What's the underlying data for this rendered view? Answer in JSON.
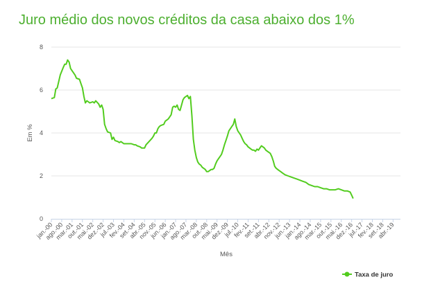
{
  "colors": {
    "title": "#4caf2f",
    "series": "#52cc1e",
    "grid": "#e6e6e6",
    "axis_line": "#c7d3e6",
    "text": "#555555"
  },
  "chart_data": {
    "type": "line",
    "title": "Juro médio dos novos créditos da casa abaixo dos 1%",
    "xlabel": "Mês",
    "ylabel": "Em %",
    "ylim": [
      0,
      8
    ],
    "yticks": [
      0,
      2,
      4,
      6,
      8
    ],
    "grid": "horizontal",
    "legend_position": "bottom-right",
    "x_start": "jan-00",
    "x_end": "set-19",
    "xticks": [
      {
        "label": "jan.-00",
        "index": 0
      },
      {
        "label": "ago.-00",
        "index": 7
      },
      {
        "label": "mar.-01",
        "index": 14
      },
      {
        "label": "out.-01",
        "index": 21
      },
      {
        "label": "mai.-02",
        "index": 28
      },
      {
        "label": "dez.-02",
        "index": 35
      },
      {
        "label": "jul.-03",
        "index": 42
      },
      {
        "label": "fev.-04",
        "index": 49
      },
      {
        "label": "set.-04",
        "index": 56
      },
      {
        "label": "abr.-05",
        "index": 63
      },
      {
        "label": "nov.-05",
        "index": 70
      },
      {
        "label": "jun.-06",
        "index": 77
      },
      {
        "label": "jan.-07",
        "index": 84
      },
      {
        "label": "ago.-07",
        "index": 91
      },
      {
        "label": "mar.-08",
        "index": 98
      },
      {
        "label": "out.-08",
        "index": 105
      },
      {
        "label": "mai.-09",
        "index": 112
      },
      {
        "label": "dez.-09",
        "index": 119
      },
      {
        "label": "jul.-10",
        "index": 126
      },
      {
        "label": "fev.-11",
        "index": 133
      },
      {
        "label": "set.-11",
        "index": 140
      },
      {
        "label": "abr.-12",
        "index": 147
      },
      {
        "label": "nov.-12",
        "index": 154
      },
      {
        "label": "jun.-13",
        "index": 161
      },
      {
        "label": "jan.-14",
        "index": 168
      },
      {
        "label": "ago.-14",
        "index": 175
      },
      {
        "label": "mar.-15",
        "index": 182
      },
      {
        "label": "out.-15",
        "index": 189
      },
      {
        "label": "mai.-16",
        "index": 196
      },
      {
        "label": "dez.-16",
        "index": 203
      },
      {
        "label": "jul.-17",
        "index": 210
      },
      {
        "label": "fev.-18",
        "index": 217
      },
      {
        "label": "set.-18",
        "index": 224
      },
      {
        "label": "abr.-19",
        "index": 231
      }
    ],
    "series": [
      {
        "name": "Taxa de juro",
        "points": [
          [
            0,
            5.6
          ],
          [
            2,
            5.65
          ],
          [
            3,
            6.05
          ],
          [
            4,
            6.1
          ],
          [
            6,
            6.7
          ],
          [
            8,
            7.05
          ],
          [
            9,
            7.2
          ],
          [
            10,
            7.2
          ],
          [
            11,
            7.4
          ],
          [
            12,
            7.3
          ],
          [
            13,
            7.0
          ],
          [
            14,
            6.9
          ],
          [
            16,
            6.7
          ],
          [
            17,
            6.55
          ],
          [
            19,
            6.5
          ],
          [
            20,
            6.3
          ],
          [
            21,
            6.1
          ],
          [
            22,
            5.7
          ],
          [
            23,
            5.4
          ],
          [
            24,
            5.5
          ],
          [
            26,
            5.4
          ],
          [
            28,
            5.45
          ],
          [
            29,
            5.4
          ],
          [
            30,
            5.5
          ],
          [
            32,
            5.35
          ],
          [
            33,
            5.2
          ],
          [
            34,
            5.3
          ],
          [
            35,
            5.1
          ],
          [
            36,
            4.4
          ],
          [
            37,
            4.2
          ],
          [
            38,
            4.05
          ],
          [
            40,
            4.0
          ],
          [
            41,
            3.7
          ],
          [
            42,
            3.8
          ],
          [
            43,
            3.65
          ],
          [
            45,
            3.6
          ],
          [
            46,
            3.55
          ],
          [
            47,
            3.6
          ],
          [
            48,
            3.55
          ],
          [
            49,
            3.5
          ],
          [
            50,
            3.5
          ],
          [
            52,
            3.5
          ],
          [
            54,
            3.5
          ],
          [
            56,
            3.45
          ],
          [
            57,
            3.45
          ],
          [
            58,
            3.4
          ],
          [
            60,
            3.35
          ],
          [
            61,
            3.3
          ],
          [
            62,
            3.3
          ],
          [
            63,
            3.3
          ],
          [
            64,
            3.45
          ],
          [
            66,
            3.6
          ],
          [
            68,
            3.75
          ],
          [
            69,
            3.85
          ],
          [
            70,
            4.0
          ],
          [
            71,
            4.0
          ],
          [
            72,
            4.2
          ],
          [
            73,
            4.3
          ],
          [
            74,
            4.35
          ],
          [
            76,
            4.4
          ],
          [
            77,
            4.55
          ],
          [
            78,
            4.6
          ],
          [
            79,
            4.65
          ],
          [
            80,
            4.75
          ],
          [
            81,
            4.85
          ],
          [
            82,
            5.2
          ],
          [
            83,
            5.25
          ],
          [
            84,
            5.2
          ],
          [
            85,
            5.3
          ],
          [
            86,
            5.1
          ],
          [
            87,
            5.05
          ],
          [
            88,
            5.3
          ],
          [
            89,
            5.55
          ],
          [
            90,
            5.65
          ],
          [
            91,
            5.7
          ],
          [
            92,
            5.75
          ],
          [
            93,
            5.6
          ],
          [
            94,
            5.7
          ],
          [
            95,
            4.8
          ],
          [
            96,
            3.7
          ],
          [
            97,
            3.2
          ],
          [
            98,
            2.85
          ],
          [
            99,
            2.65
          ],
          [
            100,
            2.55
          ],
          [
            101,
            2.5
          ],
          [
            102,
            2.4
          ],
          [
            103,
            2.35
          ],
          [
            104,
            2.3
          ],
          [
            105,
            2.2
          ],
          [
            106,
            2.2
          ],
          [
            107,
            2.25
          ],
          [
            108,
            2.3
          ],
          [
            109,
            2.3
          ],
          [
            110,
            2.35
          ],
          [
            111,
            2.55
          ],
          [
            112,
            2.7
          ],
          [
            113,
            2.8
          ],
          [
            114,
            2.9
          ],
          [
            115,
            3.0
          ],
          [
            116,
            3.2
          ],
          [
            117,
            3.45
          ],
          [
            118,
            3.65
          ],
          [
            119,
            3.85
          ],
          [
            120,
            4.1
          ],
          [
            121,
            4.2
          ],
          [
            122,
            4.3
          ],
          [
            123,
            4.4
          ],
          [
            124,
            4.65
          ],
          [
            125,
            4.3
          ],
          [
            126,
            4.1
          ],
          [
            127,
            4.0
          ],
          [
            128,
            3.9
          ],
          [
            129,
            3.75
          ],
          [
            130,
            3.6
          ],
          [
            131,
            3.5
          ],
          [
            132,
            3.45
          ],
          [
            133,
            3.35
          ],
          [
            134,
            3.3
          ],
          [
            135,
            3.25
          ],
          [
            136,
            3.2
          ],
          [
            137,
            3.2
          ],
          [
            138,
            3.15
          ],
          [
            139,
            3.25
          ],
          [
            140,
            3.2
          ],
          [
            141,
            3.3
          ],
          [
            142,
            3.4
          ],
          [
            143,
            3.35
          ],
          [
            144,
            3.3
          ],
          [
            145,
            3.2
          ],
          [
            146,
            3.15
          ],
          [
            147,
            3.1
          ],
          [
            148,
            3.05
          ],
          [
            149,
            2.9
          ],
          [
            150,
            2.7
          ],
          [
            151,
            2.45
          ],
          [
            152,
            2.35
          ],
          [
            153,
            2.3
          ],
          [
            154,
            2.25
          ],
          [
            155,
            2.2
          ],
          [
            156,
            2.15
          ],
          [
            157,
            2.1
          ],
          [
            158,
            2.05
          ],
          [
            160,
            2.0
          ],
          [
            162,
            1.95
          ],
          [
            164,
            1.9
          ],
          [
            166,
            1.85
          ],
          [
            168,
            1.8
          ],
          [
            170,
            1.75
          ],
          [
            172,
            1.7
          ],
          [
            174,
            1.6
          ],
          [
            176,
            1.55
          ],
          [
            178,
            1.5
          ],
          [
            180,
            1.5
          ],
          [
            182,
            1.45
          ],
          [
            184,
            1.4
          ],
          [
            186,
            1.4
          ],
          [
            188,
            1.35
          ],
          [
            190,
            1.35
          ],
          [
            192,
            1.35
          ],
          [
            194,
            1.4
          ],
          [
            196,
            1.35
          ],
          [
            198,
            1.3
          ],
          [
            200,
            1.3
          ],
          [
            202,
            1.25
          ],
          [
            203,
            1.1
          ],
          [
            204,
            0.95
          ]
        ]
      }
    ]
  }
}
